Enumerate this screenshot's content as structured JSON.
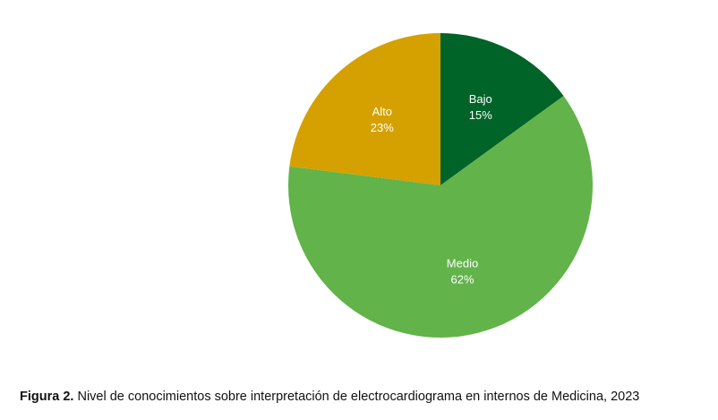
{
  "chart_data": {
    "type": "pie",
    "title": "",
    "slices": [
      {
        "name": "Bajo",
        "value": 15,
        "value_label": "15%",
        "color": "#006328"
      },
      {
        "name": "Medio",
        "value": 62,
        "value_label": "62%",
        "color": "#62b34a"
      },
      {
        "name": "Alto",
        "value": 23,
        "value_label": "23%",
        "color": "#d4a100"
      }
    ],
    "start_angle_deg": 0,
    "direction": "clockwise",
    "legend": "none"
  },
  "caption": {
    "label": "Figura 2.",
    "text": " Nivel de conocimientos sobre interpretación de electrocardiograma en internos de Medicina, 2023"
  }
}
